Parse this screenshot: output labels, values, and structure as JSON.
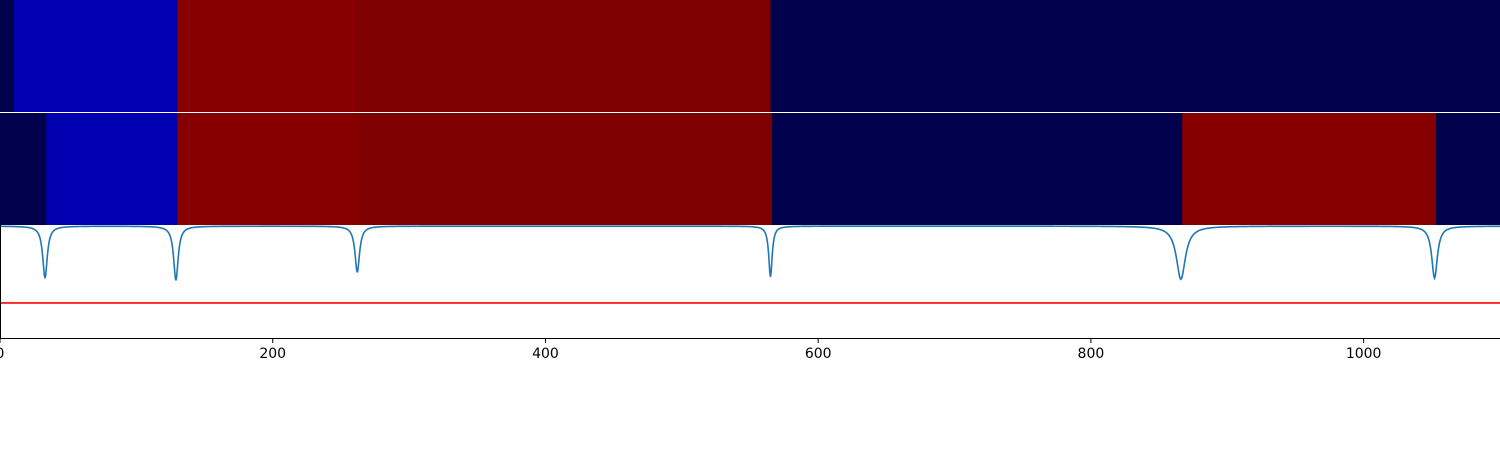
{
  "chart_data": [
    {
      "type": "heatmap",
      "title": "",
      "xlabel": "",
      "ylabel": "",
      "xlim": [
        0,
        1100
      ],
      "segments": [
        {
          "start": 0,
          "end": 10,
          "color": "#00004c"
        },
        {
          "start": 10,
          "end": 130,
          "color": "#0000b0"
        },
        {
          "start": 130,
          "end": 260,
          "color": "#870000"
        },
        {
          "start": 260,
          "end": 565,
          "color": "#7f0000"
        },
        {
          "start": 565,
          "end": 1100,
          "color": "#00004c"
        }
      ]
    },
    {
      "type": "heatmap",
      "title": "",
      "xlabel": "",
      "ylabel": "",
      "xlim": [
        0,
        1100
      ],
      "segments": [
        {
          "start": 0,
          "end": 34,
          "color": "#00004c"
        },
        {
          "start": 34,
          "end": 130,
          "color": "#0000b0"
        },
        {
          "start": 130,
          "end": 262,
          "color": "#870000"
        },
        {
          "start": 262,
          "end": 566,
          "color": "#7f0000"
        },
        {
          "start": 566,
          "end": 867,
          "color": "#00004c"
        },
        {
          "start": 867,
          "end": 1053,
          "color": "#870000"
        },
        {
          "start": 1053,
          "end": 1100,
          "color": "#00004c"
        }
      ]
    },
    {
      "type": "line",
      "title": "",
      "xlabel": "",
      "ylabel": "",
      "xlim": [
        0,
        1100
      ],
      "ylim": [
        0,
        1
      ],
      "x_ticks": [
        0,
        200,
        400,
        600,
        800,
        1000
      ],
      "x_tick_labels": [
        "0",
        "200",
        "400",
        "600",
        "800",
        "1000"
      ],
      "series": [
        {
          "color": "#1f77b4",
          "baseline": 0.99,
          "dips": [
            {
              "x": 33,
              "min": 0.53,
              "width": 4
            },
            {
              "x": 129,
              "min": 0.51,
              "width": 4
            },
            {
              "x": 262,
              "min": 0.58,
              "width": 4
            },
            {
              "x": 565,
              "min": 0.54,
              "width": 3
            },
            {
              "x": 866,
              "min": 0.52,
              "width": 8
            },
            {
              "x": 1052,
              "min": 0.53,
              "width": 5
            }
          ]
        },
        {
          "color": "#ff0000",
          "constant": 0.31
        }
      ]
    }
  ]
}
